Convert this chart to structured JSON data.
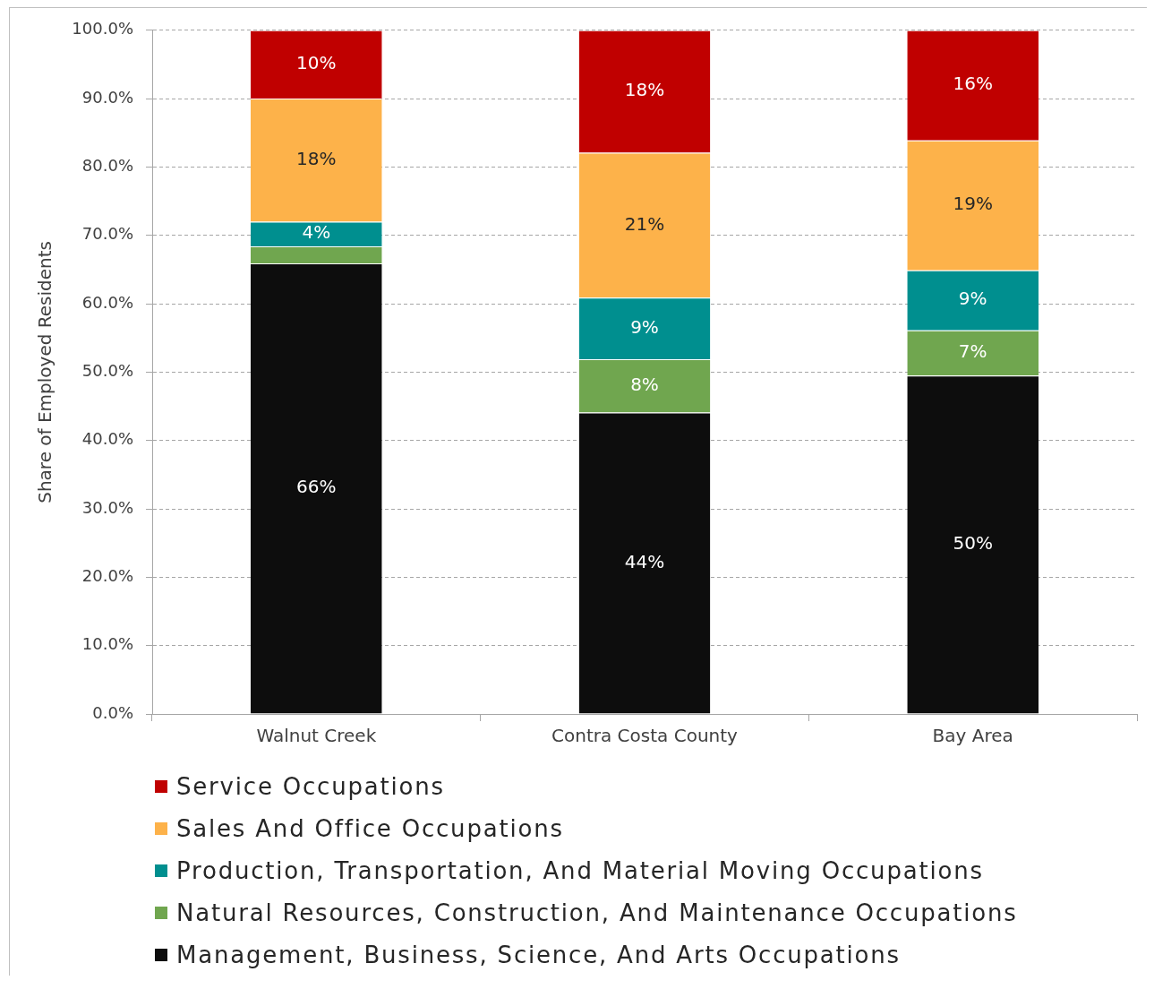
{
  "chart_data": {
    "type": "bar",
    "stacked": true,
    "ylabel": "Share of Employed Residents",
    "categories": [
      "Walnut Creek",
      "Contra Costa County",
      "Bay Area"
    ],
    "series": [
      {
        "name": "Management, Business, Science, And Arts Occupations",
        "color": "#0d0d0d",
        "values": [
          65.9,
          44.1,
          49.5
        ],
        "value_labels": [
          "66%",
          "44%",
          "50%"
        ]
      },
      {
        "name": "Natural Resources, Construction, And Maintenance Occupations",
        "color": "#70a64f",
        "values": [
          2.5,
          7.8,
          6.6
        ],
        "value_labels": [
          null,
          "8%",
          "7%"
        ]
      },
      {
        "name": "Production, Transportation, And Material Moving Occupations",
        "color": "#008f8f",
        "values": [
          3.6,
          9.0,
          8.8
        ],
        "value_labels": [
          "4%",
          "9%",
          "9%"
        ]
      },
      {
        "name": "Sales And Office Occupations",
        "color": "#fdb24a",
        "values": [
          18.0,
          21.2,
          19.0
        ],
        "value_labels": [
          "18%",
          "21%",
          "19%"
        ]
      },
      {
        "name": "Service Occupations",
        "color": "#c00000",
        "values": [
          10.0,
          17.9,
          16.1
        ],
        "value_labels": [
          "10%",
          "18%",
          "16%"
        ]
      }
    ],
    "ylim": [
      0,
      100
    ],
    "yticks": [
      {
        "value": 0,
        "label": "0.0%"
      },
      {
        "value": 10,
        "label": "10.0%"
      },
      {
        "value": 20,
        "label": "20.0%"
      },
      {
        "value": 30,
        "label": "30.0%"
      },
      {
        "value": 40,
        "label": "40.0%"
      },
      {
        "value": 50,
        "label": "50.0%"
      },
      {
        "value": 60,
        "label": "60.0%"
      },
      {
        "value": 70,
        "label": "70.0%"
      },
      {
        "value": 80,
        "label": "80.0%"
      },
      {
        "value": 90,
        "label": "90.0%"
      },
      {
        "value": 100,
        "label": "100.0%"
      }
    ],
    "grid": "y",
    "legend": "bottom"
  }
}
